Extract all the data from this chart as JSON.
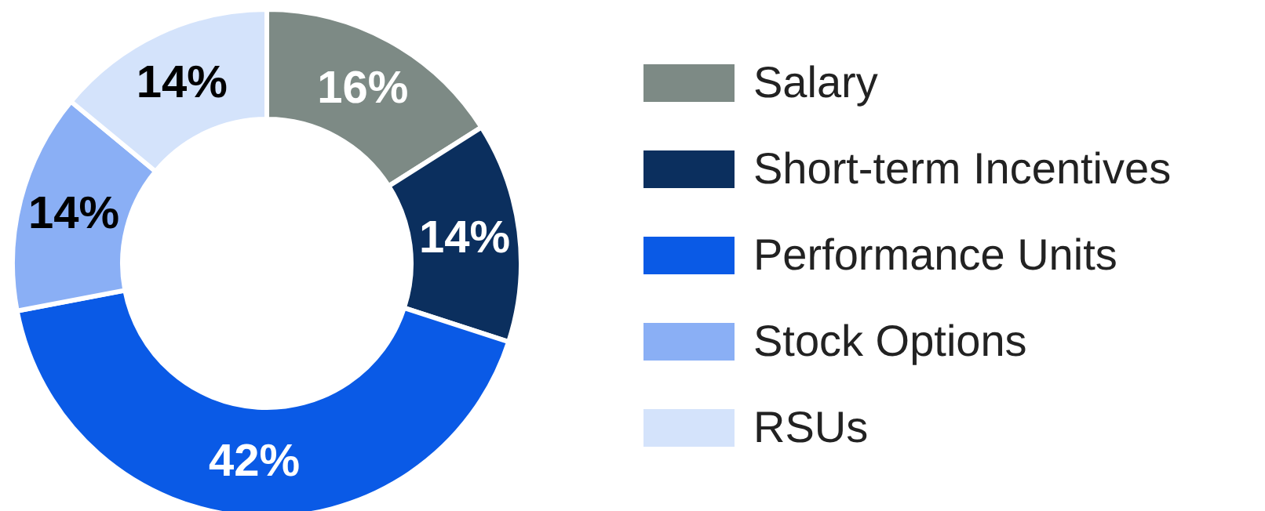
{
  "chart_data": {
    "type": "donut",
    "categories": [
      "Salary",
      "Short-term Incentives",
      "Performance Units",
      "Stock Options",
      "RSUs"
    ],
    "values": [
      16,
      14,
      42,
      14,
      14
    ],
    "colors": [
      "#7d8a85",
      "#0b2f5e",
      "#0a5ae6",
      "#8aaff5",
      "#d4e3fb"
    ],
    "value_labels": [
      "16%",
      "14%",
      "42%",
      "14%",
      "14%"
    ],
    "legend": "right"
  }
}
